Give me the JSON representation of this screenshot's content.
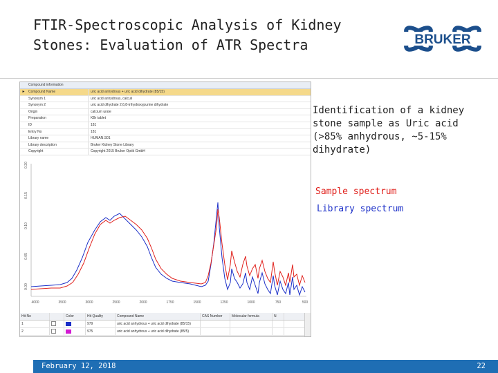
{
  "slide": {
    "title_line1": "FTIR-Spectroscopic Analysis of Kidney",
    "title_line2": "Stones: Evaluation of ATR Spectra",
    "logo_text": "BRUKER",
    "description": "Identification of a kidney stone sample as Uric acid (>85% anhydrous, ~5-15% dihydrate)",
    "sample_label": "Sample spectrum",
    "library_label": "Library spectrum",
    "footer_date": "February 12, 2018",
    "page_number": "22"
  },
  "colors": {
    "sample": "#e0201b",
    "library": "#1b2fc8",
    "footer": "#1f6eb4",
    "logo": "#1c4f8c"
  },
  "info_grid": {
    "header": "Compound information",
    "rows": [
      {
        "key": "Compound Name",
        "value": "uric acid anhydrous + uric acid dihydrate (85/15)"
      },
      {
        "key": "Synonym 1",
        "value": "uric acid anhydrous, calculi"
      },
      {
        "key": "Synonym 2",
        "value": "uric acid dihydrate 2,6,8-trihydroxypurine dihydrate"
      },
      {
        "key": "Origin",
        "value": "calcium urate"
      },
      {
        "key": "Preparation",
        "value": "KBr tablet"
      },
      {
        "key": "ID",
        "value": "181"
      },
      {
        "key": "Entry No",
        "value": "181"
      },
      {
        "key": "Library name",
        "value": "HUMAN.S01"
      },
      {
        "key": "Library description",
        "value": "Bruker Kidney Stone Library"
      },
      {
        "key": "Copyright",
        "value": "Copyright 2015 Bruker Optik GmbH"
      }
    ]
  },
  "results_table": {
    "headers": [
      "Hit No",
      "Color",
      "Hit Quality",
      "Compound Name",
      "CAS Number",
      "Molecular formula",
      "N"
    ],
    "rows": [
      {
        "hit": "1",
        "color": "#1b2fc8",
        "quality": "979",
        "name": "uric acid anhydrous + uric acid dihydrate (85/15)"
      },
      {
        "hit": "2",
        "color": "#d21ad2",
        "quality": "975",
        "name": "uric acid anhydrous + uric acid dihydrate (85/5)"
      }
    ]
  },
  "chart_data": {
    "type": "line",
    "x_ticks": [
      "4000",
      "3500",
      "3000",
      "2500",
      "2000",
      "1750",
      "1500",
      "1250",
      "1000",
      "750",
      "500"
    ],
    "y_ticks": [
      "0.00",
      "0.05",
      "0.10",
      "0.15",
      "0.20"
    ],
    "series": [
      {
        "name": "Sample spectrum",
        "color": "#e0201b"
      },
      {
        "name": "Library spectrum",
        "color": "#1b2fc8"
      }
    ]
  }
}
